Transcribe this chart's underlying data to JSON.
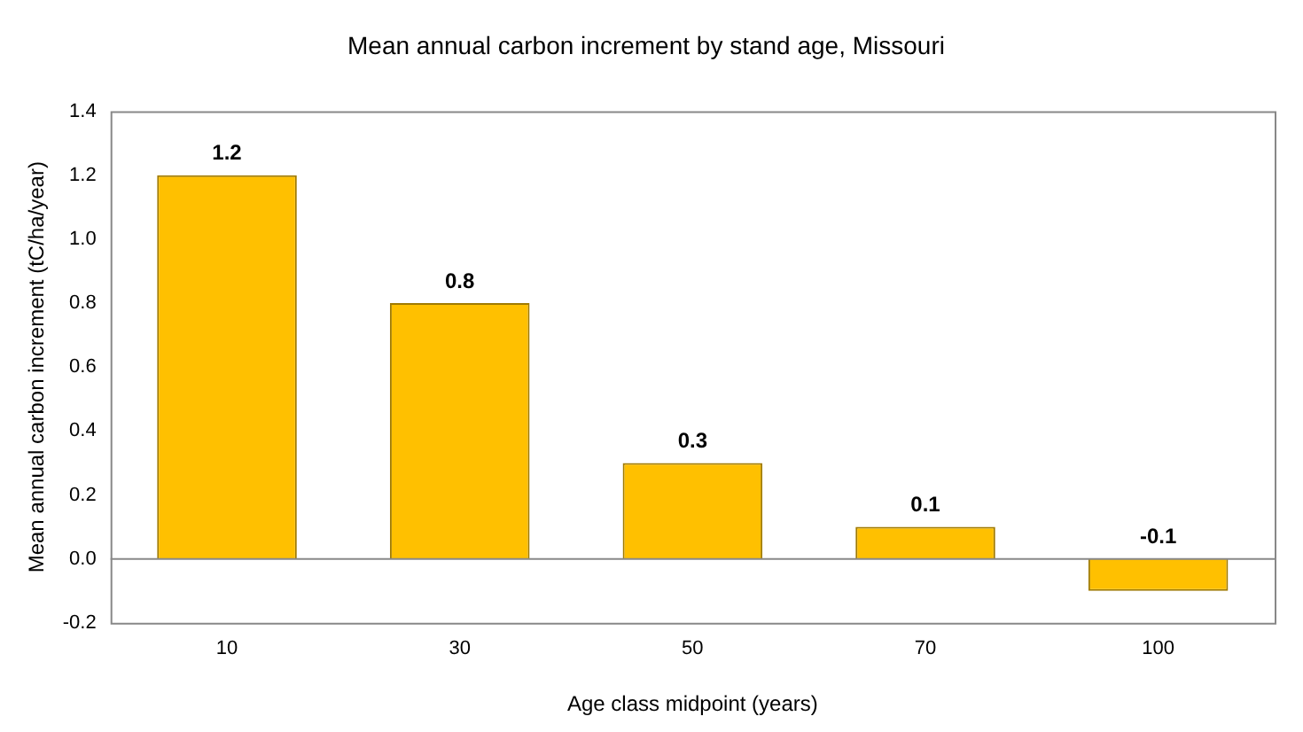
{
  "chart_data": {
    "type": "bar",
    "title": "Mean annual carbon increment by stand age, Missouri",
    "xlabel": "Age class midpoint (years)",
    "ylabel": "Mean annual carbon increment (tC/ha/year)",
    "categories": [
      "10",
      "30",
      "50",
      "70",
      "100"
    ],
    "values": [
      1.2,
      0.8,
      0.3,
      0.1,
      -0.1
    ],
    "color": "#ffc000",
    "ylim": [
      -0.2,
      1.4
    ],
    "yticks": [
      -0.2,
      {
        "value": 0,
        "label": "0.0"
      },
      0.2,
      0.4,
      0.6,
      0.8,
      {
        "value": 1,
        "label": "1.0"
      },
      1.2,
      1.4
    ],
    "data_labels": true,
    "legend": false
  }
}
